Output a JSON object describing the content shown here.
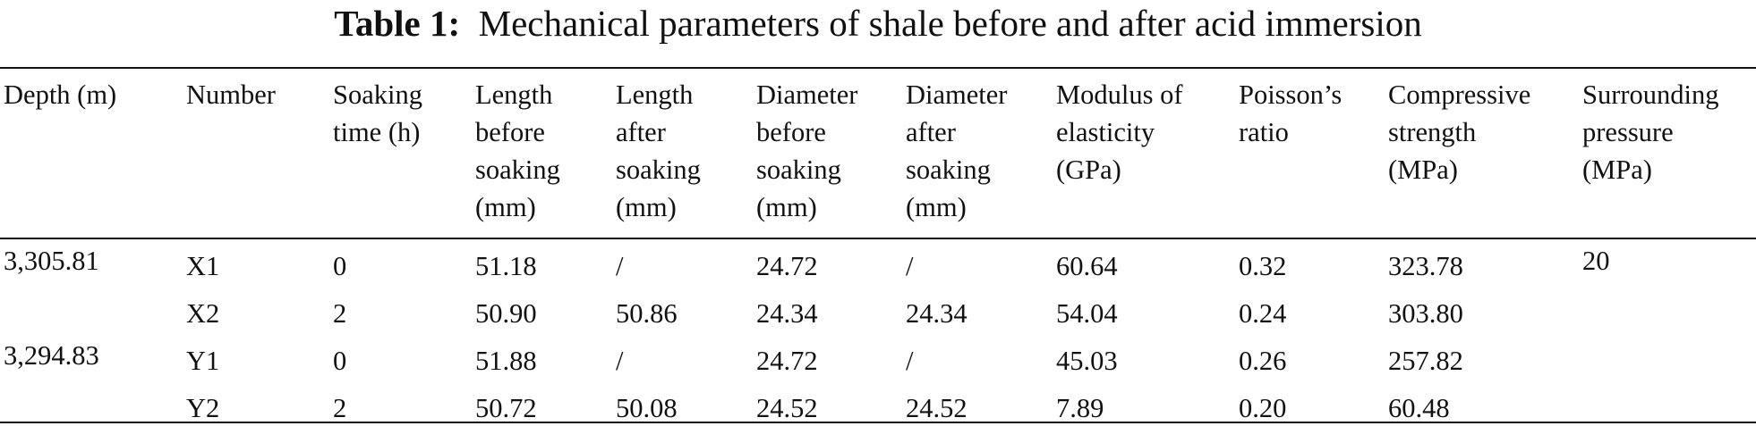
{
  "caption": {
    "label": "Table 1:",
    "text": "Mechanical parameters of shale before and after acid immersion"
  },
  "columns": [
    [
      "Depth (m)"
    ],
    [
      "Number"
    ],
    [
      "Soaking",
      "time (h)"
    ],
    [
      "Length",
      "before",
      "soaking",
      "(mm)"
    ],
    [
      "Length",
      "after",
      "soaking",
      "(mm)"
    ],
    [
      "Diameter",
      "before",
      "soaking",
      "(mm)"
    ],
    [
      "Diameter",
      "after",
      "soaking",
      "(mm)"
    ],
    [
      "Modulus of",
      "elasticity",
      "(GPa)"
    ],
    [
      "Poisson’s",
      "ratio"
    ],
    [
      "Compressive",
      "strength",
      "(MPa)"
    ],
    [
      "Surrounding",
      "pressure",
      "(MPa)"
    ]
  ],
  "rows": [
    [
      "3,305.81",
      "X1",
      "0",
      "51.18",
      "/",
      "24.72",
      "/",
      "60.64",
      "0.32",
      "323.78",
      "20"
    ],
    [
      "",
      "X2",
      "2",
      "50.90",
      "50.86",
      "24.34",
      "24.34",
      "54.04",
      "0.24",
      "303.80",
      ""
    ],
    [
      "3,294.83",
      "Y1",
      "0",
      "51.88",
      "/",
      "24.72",
      "/",
      "45.03",
      "0.26",
      "257.82",
      ""
    ],
    [
      "",
      "Y2",
      "2",
      "50.72",
      "50.08",
      "24.52",
      "24.52",
      "7.89",
      "0.20",
      "60.48",
      ""
    ]
  ]
}
